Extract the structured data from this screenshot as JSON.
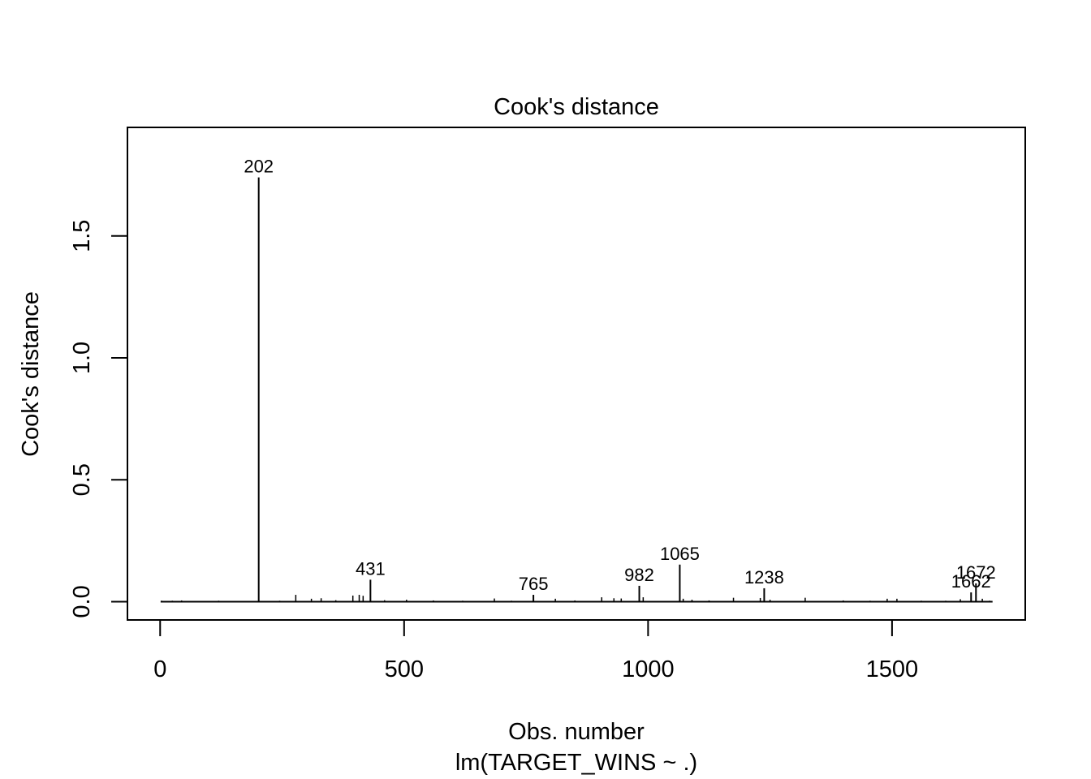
{
  "chart_data": {
    "type": "bar",
    "title": "Cook's distance",
    "xlabel": "Obs. number",
    "subtitle": "lm(TARGET_WINS ~ .)",
    "ylabel": "Cook's distance",
    "xlim": [
      -67,
      1773
    ],
    "ylim": [
      -0.075,
      1.945
    ],
    "xticks": [
      0,
      500,
      1000,
      1500
    ],
    "yticks": [
      0.0,
      0.5,
      1.0,
      1.5
    ],
    "xtick_labels": [
      "0",
      "500",
      "1000",
      "1500"
    ],
    "ytick_labels": [
      "0.0",
      "0.5",
      "1.0",
      "1.5"
    ],
    "n_obs": 1706,
    "labeled_points": [
      {
        "obs": 202,
        "value": 1.74,
        "label": "202"
      },
      {
        "obs": 431,
        "value": 0.09,
        "label": "431"
      },
      {
        "obs": 765,
        "value": 0.028,
        "label": "765"
      },
      {
        "obs": 982,
        "value": 0.065,
        "label": "982"
      },
      {
        "obs": 1065,
        "value": 0.152,
        "label": "1065"
      },
      {
        "obs": 1238,
        "value": 0.055,
        "label": "1238"
      },
      {
        "obs": 1662,
        "value": 0.038,
        "label": "1662"
      },
      {
        "obs": 1672,
        "value": 0.075,
        "label": "1672"
      }
    ],
    "minor_points": [
      {
        "obs": 3,
        "value": 0.004
      },
      {
        "obs": 15,
        "value": 0.003
      },
      {
        "obs": 25,
        "value": 0.004
      },
      {
        "obs": 44,
        "value": 0.005
      },
      {
        "obs": 62,
        "value": 0.003
      },
      {
        "obs": 90,
        "value": 0.003
      },
      {
        "obs": 120,
        "value": 0.004
      },
      {
        "obs": 150,
        "value": 0.003
      },
      {
        "obs": 180,
        "value": 0.003
      },
      {
        "obs": 245,
        "value": 0.004
      },
      {
        "obs": 278,
        "value": 0.028
      },
      {
        "obs": 310,
        "value": 0.012
      },
      {
        "obs": 330,
        "value": 0.014
      },
      {
        "obs": 360,
        "value": 0.006
      },
      {
        "obs": 395,
        "value": 0.025
      },
      {
        "obs": 408,
        "value": 0.028
      },
      {
        "obs": 416,
        "value": 0.024
      },
      {
        "obs": 460,
        "value": 0.006
      },
      {
        "obs": 505,
        "value": 0.008
      },
      {
        "obs": 560,
        "value": 0.005
      },
      {
        "obs": 620,
        "value": 0.004
      },
      {
        "obs": 685,
        "value": 0.013
      },
      {
        "obs": 720,
        "value": 0.004
      },
      {
        "obs": 810,
        "value": 0.012
      },
      {
        "obs": 850,
        "value": 0.005
      },
      {
        "obs": 905,
        "value": 0.018
      },
      {
        "obs": 930,
        "value": 0.014
      },
      {
        "obs": 945,
        "value": 0.013
      },
      {
        "obs": 990,
        "value": 0.018
      },
      {
        "obs": 1072,
        "value": 0.012
      },
      {
        "obs": 1090,
        "value": 0.008
      },
      {
        "obs": 1125,
        "value": 0.005
      },
      {
        "obs": 1175,
        "value": 0.016
      },
      {
        "obs": 1230,
        "value": 0.015
      },
      {
        "obs": 1250,
        "value": 0.008
      },
      {
        "obs": 1322,
        "value": 0.016
      },
      {
        "obs": 1400,
        "value": 0.005
      },
      {
        "obs": 1455,
        "value": 0.004
      },
      {
        "obs": 1490,
        "value": 0.012
      },
      {
        "obs": 1510,
        "value": 0.012
      },
      {
        "obs": 1560,
        "value": 0.004
      },
      {
        "obs": 1610,
        "value": 0.004
      },
      {
        "obs": 1640,
        "value": 0.01
      },
      {
        "obs": 1685,
        "value": 0.012
      },
      {
        "obs": 1700,
        "value": 0.004
      }
    ]
  }
}
